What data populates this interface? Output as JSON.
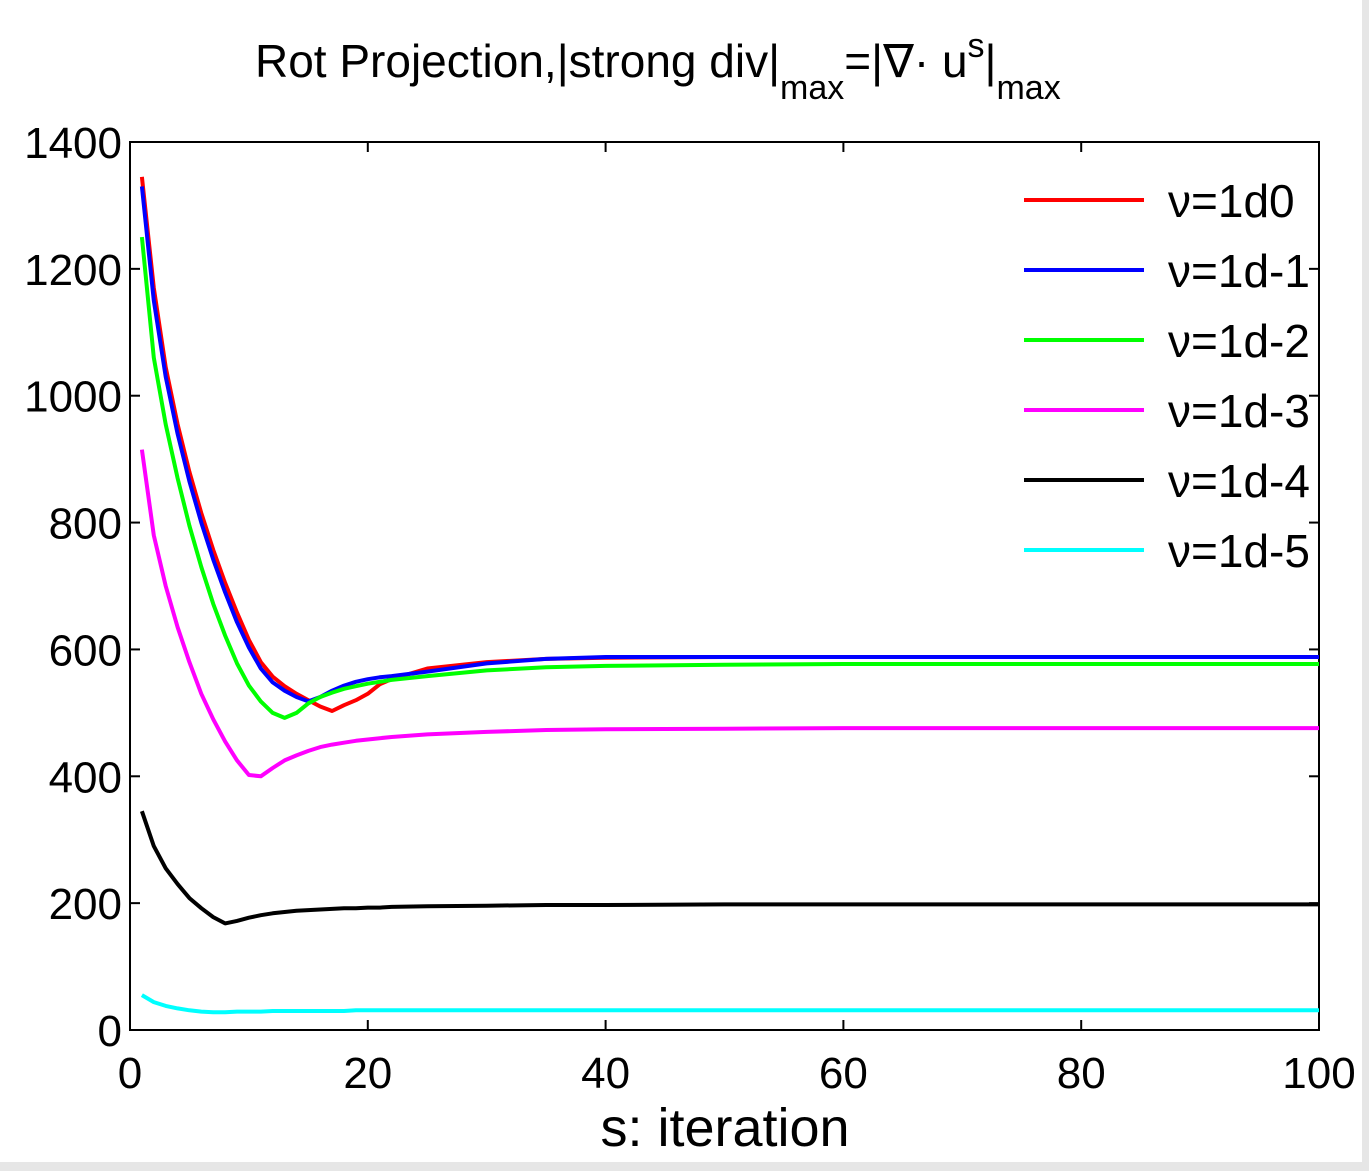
{
  "chart_data": {
    "type": "line",
    "title": {
      "main": "Rot Projection,|strong div|",
      "sub1": "max",
      "mid": "=|∇· u",
      "sup": "s",
      "end": "|",
      "sub2": "max"
    },
    "xlabel": "s: iteration",
    "ylabel": "",
    "xlim": [
      0,
      100
    ],
    "ylim": [
      0,
      1400
    ],
    "xticks": [
      "0",
      "20",
      "40",
      "60",
      "80",
      "100"
    ],
    "yticks": [
      "0",
      "200",
      "400",
      "600",
      "800",
      "1000",
      "1200",
      "1400"
    ],
    "grid": false,
    "legend_position": "top-right",
    "x": [
      1,
      2,
      3,
      4,
      5,
      6,
      7,
      8,
      9,
      10,
      11,
      12,
      13,
      14,
      15,
      16,
      17,
      18,
      19,
      20,
      21,
      22,
      25,
      30,
      35,
      40,
      50,
      60,
      70,
      80,
      90,
      100
    ],
    "series": [
      {
        "name": "ν=1d0",
        "color": "#ff0000",
        "values": [
          1345,
          1170,
          1045,
          955,
          880,
          815,
          757,
          705,
          658,
          615,
          580,
          557,
          542,
          530,
          520,
          510,
          503,
          512,
          520,
          530,
          545,
          553,
          570,
          580,
          585,
          587,
          588,
          588,
          588,
          588,
          588,
          588
        ]
      },
      {
        "name": "ν=1d-1",
        "color": "#0000ff",
        "values": [
          1330,
          1150,
          1030,
          940,
          865,
          800,
          742,
          690,
          643,
          603,
          570,
          548,
          535,
          525,
          518,
          525,
          535,
          543,
          549,
          553,
          556,
          558,
          565,
          578,
          585,
          588,
          588,
          588,
          588,
          588,
          588,
          588
        ]
      },
      {
        "name": "ν=1d-2",
        "color": "#00ff00",
        "values": [
          1250,
          1060,
          955,
          870,
          795,
          730,
          672,
          622,
          578,
          543,
          518,
          500,
          492,
          500,
          515,
          525,
          532,
          538,
          542,
          546,
          549,
          552,
          558,
          567,
          572,
          574,
          576,
          577,
          577,
          577,
          577,
          577
        ]
      },
      {
        "name": "ν=1d-3",
        "color": "#ff00ff",
        "values": [
          915,
          780,
          700,
          635,
          580,
          530,
          490,
          455,
          425,
          402,
          400,
          413,
          425,
          433,
          440,
          446,
          450,
          453,
          456,
          458,
          460,
          462,
          466,
          470,
          473,
          474,
          475,
          476,
          476,
          476,
          476,
          476
        ]
      },
      {
        "name": "ν=1d-4",
        "color": "#000000",
        "values": [
          345,
          290,
          255,
          230,
          208,
          192,
          178,
          168,
          172,
          177,
          181,
          184,
          186,
          188,
          189,
          190,
          191,
          192,
          192,
          193,
          193,
          194,
          195,
          196,
          197,
          197,
          198,
          198,
          198,
          198,
          198,
          198
        ]
      },
      {
        "name": "ν=1d-5",
        "color": "#00ffff",
        "values": [
          55,
          44,
          38,
          34,
          31,
          29,
          28,
          28,
          29,
          29,
          29,
          30,
          30,
          30,
          30,
          30,
          30,
          30,
          31,
          31,
          31,
          31,
          31,
          31,
          31,
          31,
          31,
          31,
          31,
          31,
          31,
          31
        ]
      }
    ]
  }
}
